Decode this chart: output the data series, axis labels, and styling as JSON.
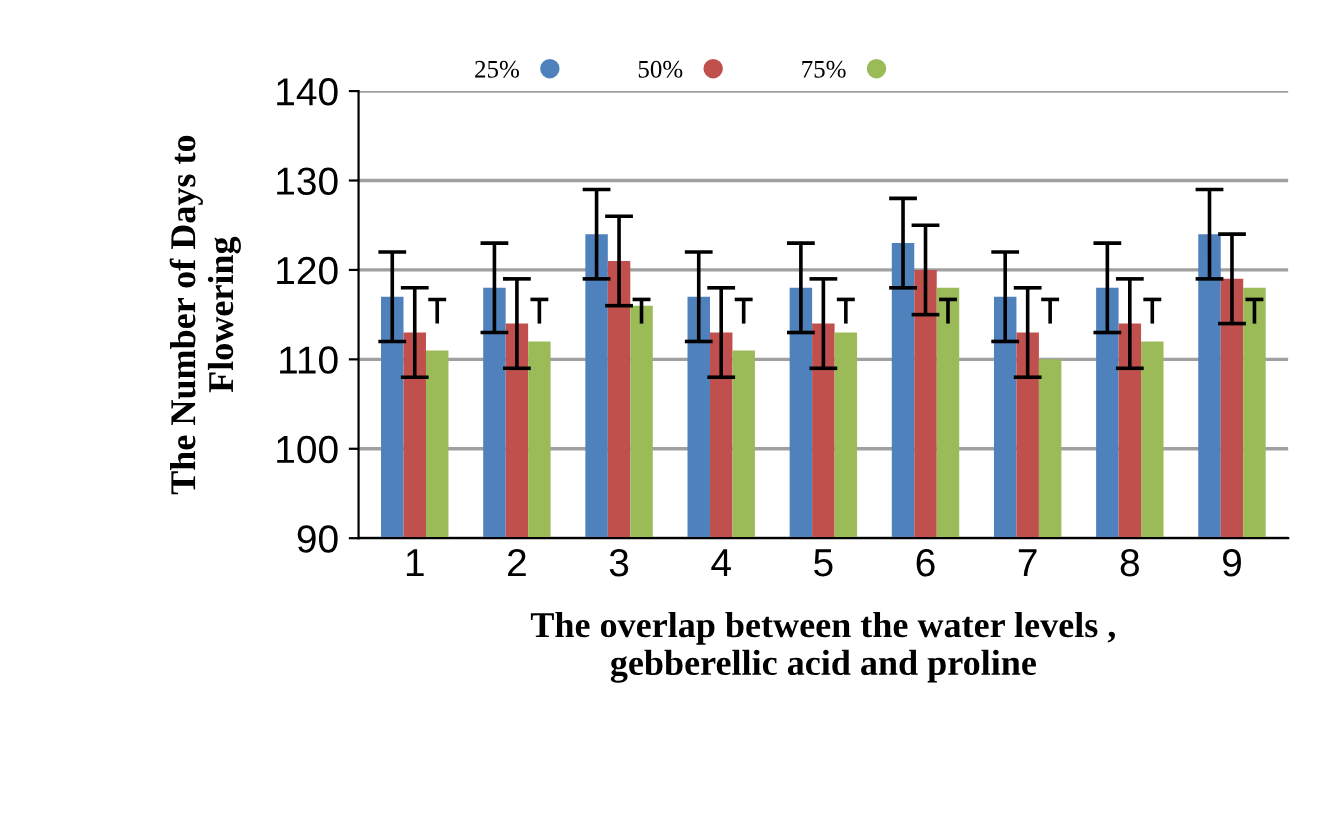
{
  "chart_data": {
    "type": "bar",
    "xlabel": "The overlap between the water levels ,\ngebberellic acid and proline",
    "ylabel": "The Number of Days to\nFlowering",
    "categories": [
      "1",
      "2",
      "3",
      "4",
      "5",
      "6",
      "7",
      "8",
      "9"
    ],
    "series": [
      {
        "name": "25%",
        "color": "#4f81bd",
        "values": [
          117,
          118,
          124,
          117,
          118,
          123,
          117,
          118,
          124
        ],
        "errors": [
          5,
          5,
          5,
          5,
          5,
          5,
          5,
          5,
          5
        ]
      },
      {
        "name": "50%",
        "color": "#c0504d",
        "values": [
          113,
          114,
          121,
          113,
          114,
          120,
          113,
          114,
          119
        ],
        "errors": [
          5,
          5,
          5,
          5,
          5,
          5,
          5,
          5,
          5
        ]
      },
      {
        "name": "75%",
        "color": "#9bbb59",
        "values": [
          111,
          112,
          116,
          111,
          113,
          118,
          110,
          112,
          118
        ],
        "errors": [
          [
            114,
            116.7
          ],
          [
            114,
            116.7
          ],
          [
            114,
            116.7
          ],
          [
            114,
            116.7
          ],
          [
            114,
            116.7
          ],
          [
            114,
            116.7
          ],
          [
            114,
            116.7
          ],
          [
            114,
            116.7
          ],
          [
            114,
            116.7
          ]
        ]
      }
    ],
    "ylim": [
      90,
      140
    ],
    "yticks": [
      90,
      100,
      110,
      120,
      130,
      140
    ],
    "grid": "y",
    "legend": "top"
  }
}
